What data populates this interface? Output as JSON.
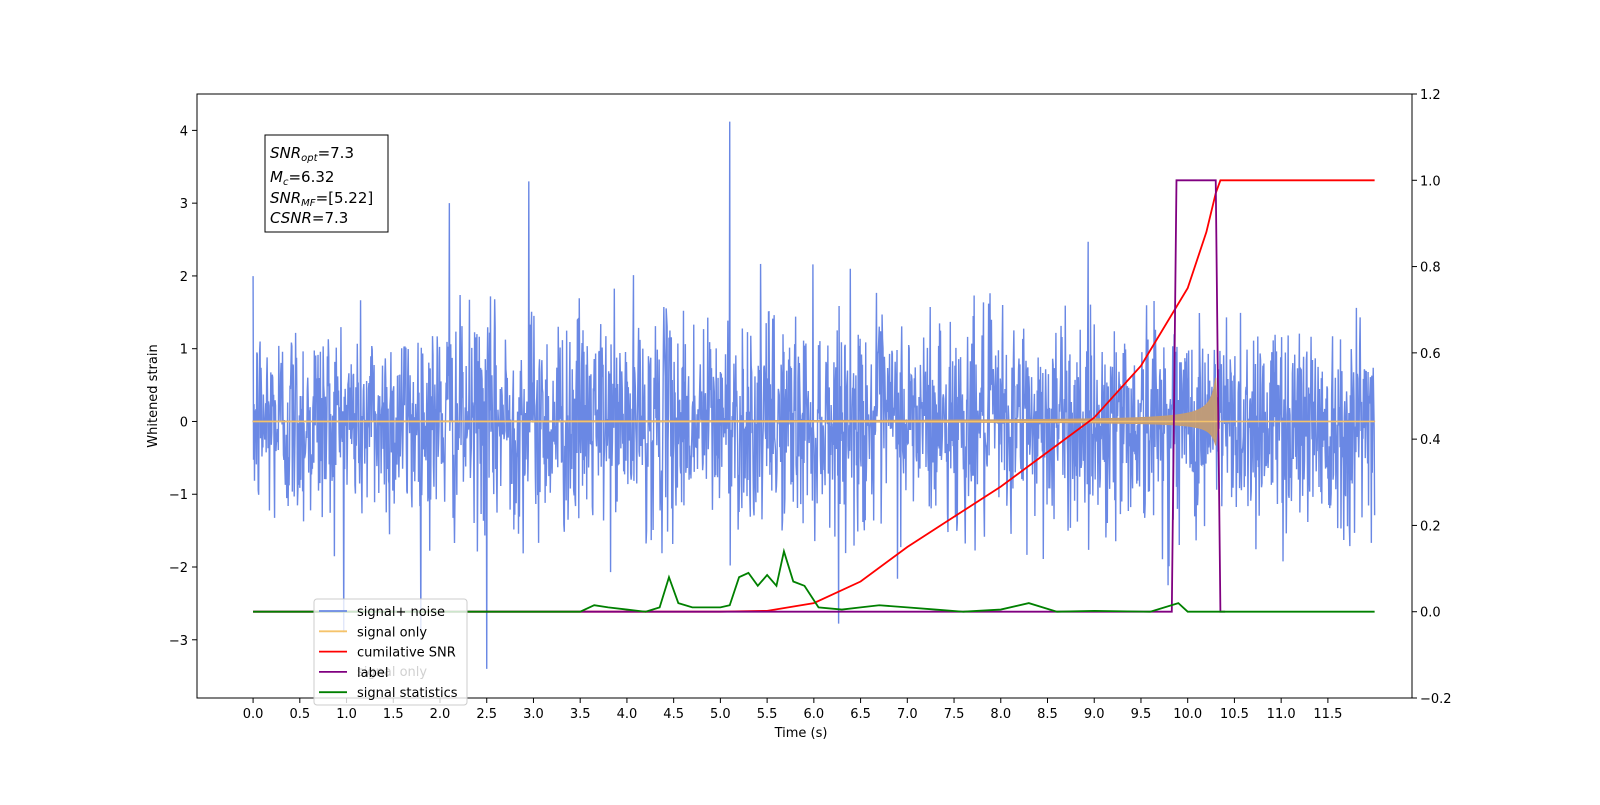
{
  "chart_data": {
    "type": "line",
    "xlabel": "Time (s)",
    "ylabel": "Whitened strain",
    "xlim": [
      -0.6,
      12.4
    ],
    "ylim": [
      -3.8,
      4.5
    ],
    "ylim_right": [
      -0.2,
      1.2
    ],
    "xticks": [
      "0.0",
      "0.5",
      "1.0",
      "1.5",
      "2.0",
      "2.5",
      "3.0",
      "3.5",
      "4.0",
      "4.5",
      "5.0",
      "5.5",
      "6.0",
      "6.5",
      "7.0",
      "7.5",
      "8.0",
      "8.5",
      "9.0",
      "9.5",
      "10.0",
      "10.5",
      "11.0",
      "11.5"
    ],
    "yticks_left": [
      "−3",
      "−2",
      "−1",
      "0",
      "1",
      "2",
      "3",
      "4"
    ],
    "yticks_right": [
      "−0.2",
      "0.0",
      "0.2",
      "0.4",
      "0.6",
      "0.8",
      "1.0",
      "1.2"
    ],
    "legend_position": "lower-left",
    "series": [
      {
        "name": "signal+ noise",
        "color": "#6a88e4",
        "axis": "left",
        "kind": "noise",
        "range": [
          0,
          12
        ],
        "typical_abs": 1.0,
        "max": 4.12,
        "min": -3.4
      },
      {
        "name": "signal only",
        "color": "#f5c36b",
        "axis": "left",
        "kind": "chirp",
        "range": [
          0,
          12
        ],
        "merger_time": 10.3,
        "peak_amplitude": 0.6
      },
      {
        "name": "cumilative SNR",
        "color": "#ff0000",
        "axis": "right",
        "points": [
          [
            0.0,
            0.0
          ],
          [
            5.0,
            0.0
          ],
          [
            5.5,
            0.002
          ],
          [
            6.0,
            0.02
          ],
          [
            6.5,
            0.07
          ],
          [
            7.0,
            0.15
          ],
          [
            7.5,
            0.22
          ],
          [
            8.0,
            0.29
          ],
          [
            8.5,
            0.37
          ],
          [
            9.0,
            0.45
          ],
          [
            9.5,
            0.57
          ],
          [
            10.0,
            0.75
          ],
          [
            10.2,
            0.88
          ],
          [
            10.3,
            0.97
          ],
          [
            10.35,
            1.0
          ],
          [
            12.0,
            1.0
          ]
        ]
      },
      {
        "name": "label",
        "color": "#800080",
        "axis": "right",
        "points": [
          [
            0.0,
            0.0
          ],
          [
            9.83,
            0.0
          ],
          [
            9.88,
            1.0
          ],
          [
            10.3,
            1.0
          ],
          [
            10.35,
            0.0
          ],
          [
            10.4,
            0.0
          ]
        ]
      },
      {
        "name": "signal statistics",
        "color": "#008000",
        "axis": "right",
        "points": [
          [
            0.0,
            0.0
          ],
          [
            3.5,
            0.0
          ],
          [
            3.65,
            0.015
          ],
          [
            3.8,
            0.01
          ],
          [
            4.0,
            0.005
          ],
          [
            4.2,
            0.0
          ],
          [
            4.35,
            0.01
          ],
          [
            4.45,
            0.08
          ],
          [
            4.55,
            0.02
          ],
          [
            4.7,
            0.01
          ],
          [
            5.0,
            0.01
          ],
          [
            5.1,
            0.015
          ],
          [
            5.2,
            0.08
          ],
          [
            5.3,
            0.09
          ],
          [
            5.4,
            0.06
          ],
          [
            5.5,
            0.085
          ],
          [
            5.6,
            0.06
          ],
          [
            5.68,
            0.14
          ],
          [
            5.78,
            0.07
          ],
          [
            5.9,
            0.06
          ],
          [
            6.05,
            0.01
          ],
          [
            6.3,
            0.005
          ],
          [
            6.5,
            0.01
          ],
          [
            6.7,
            0.015
          ],
          [
            7.0,
            0.01
          ],
          [
            7.3,
            0.005
          ],
          [
            7.6,
            0.0
          ],
          [
            8.0,
            0.005
          ],
          [
            8.3,
            0.02
          ],
          [
            8.6,
            0.0
          ],
          [
            9.0,
            0.002
          ],
          [
            9.6,
            0.0
          ],
          [
            9.9,
            0.02
          ],
          [
            10.0,
            0.0
          ],
          [
            12.0,
            0.0
          ]
        ]
      }
    ],
    "extra_legend_entry": "signal only"
  },
  "stats_box": {
    "line1_base": "SNR",
    "line1_sub": "opt",
    "line1_value": "=7.3",
    "line2_base": "M",
    "line2_sub": "c",
    "line2_value": "=6.32",
    "line3_base": "SNR",
    "line3_sub": "MF",
    "line3_value": "=[5.22]",
    "line4_base": "CSNR",
    "line4_value": "=7.3"
  }
}
